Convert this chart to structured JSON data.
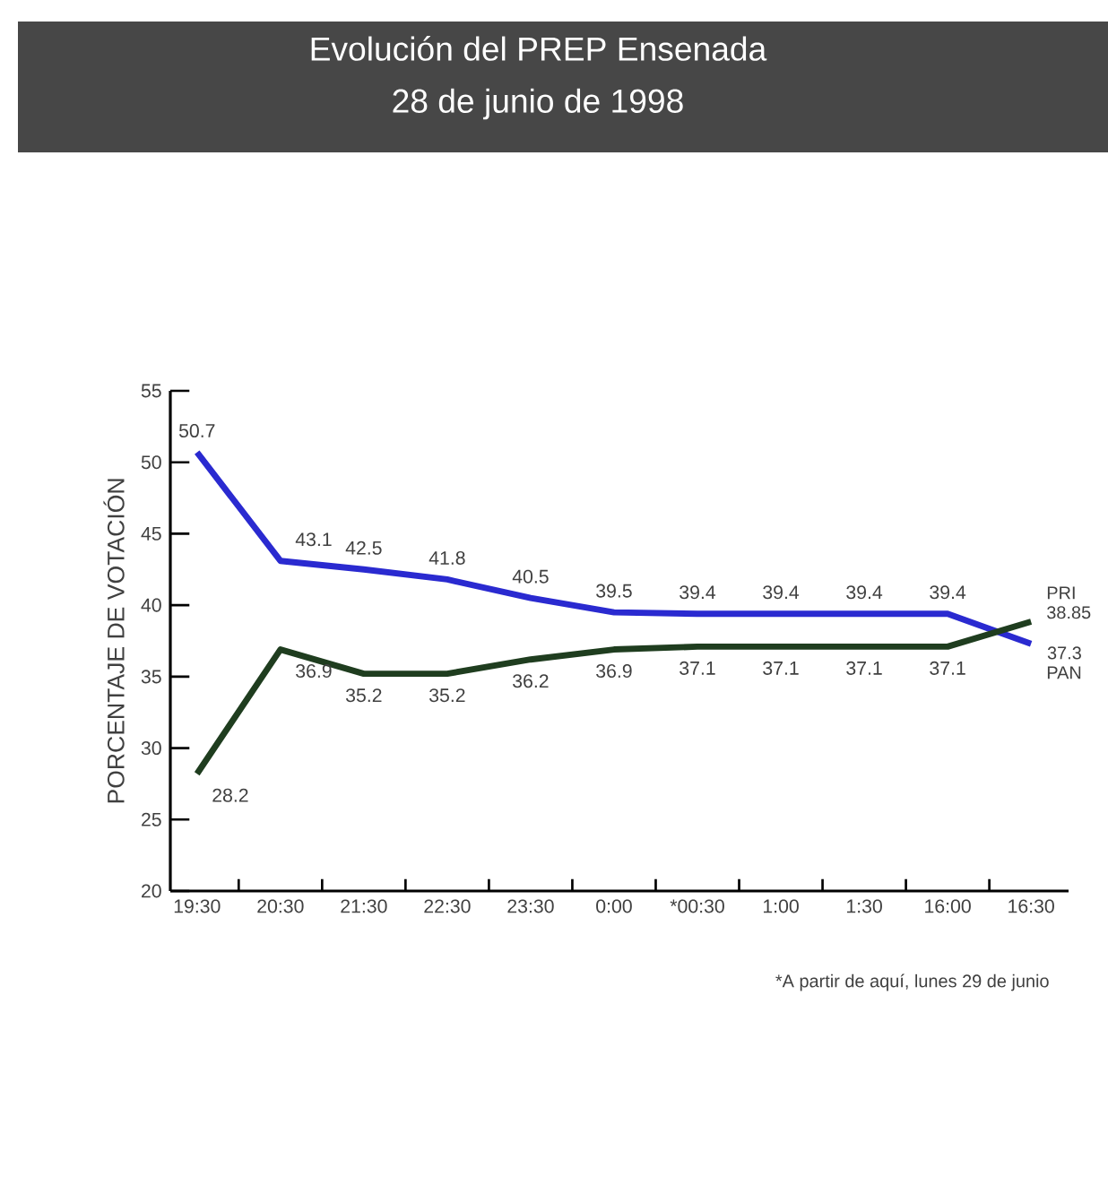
{
  "chart_data": {
    "type": "line",
    "title": "Evolución del PREP Ensenada",
    "subtitle": "28 de junio de 1998",
    "ylabel": "PORCENTAJE DE VOTACIÓN",
    "categories": [
      "19:30",
      "20:30",
      "21:30",
      "22:30",
      "23:30",
      "0:00",
      "*00:30",
      "1:00",
      "1:30",
      "16:00",
      "16:30"
    ],
    "series": [
      {
        "name": "PAN",
        "color": "#2a2ad0",
        "values": [
          50.7,
          43.1,
          42.5,
          41.8,
          40.5,
          39.5,
          39.4,
          39.4,
          39.4,
          39.4,
          37.3
        ]
      },
      {
        "name": "PRI",
        "color": "#1f3d1f",
        "values": [
          28.2,
          36.9,
          35.2,
          35.2,
          36.2,
          36.9,
          37.1,
          37.1,
          37.1,
          37.1,
          38.85
        ]
      }
    ],
    "ylim": [
      20,
      55
    ],
    "yticks": [
      20,
      25,
      30,
      35,
      40,
      45,
      50,
      55
    ],
    "data_labels": true,
    "grid": false,
    "legend": false,
    "marker": "none",
    "line_style": "solid",
    "annotations": [
      "*A partir de aquí, lunes 29 de junio"
    ]
  }
}
